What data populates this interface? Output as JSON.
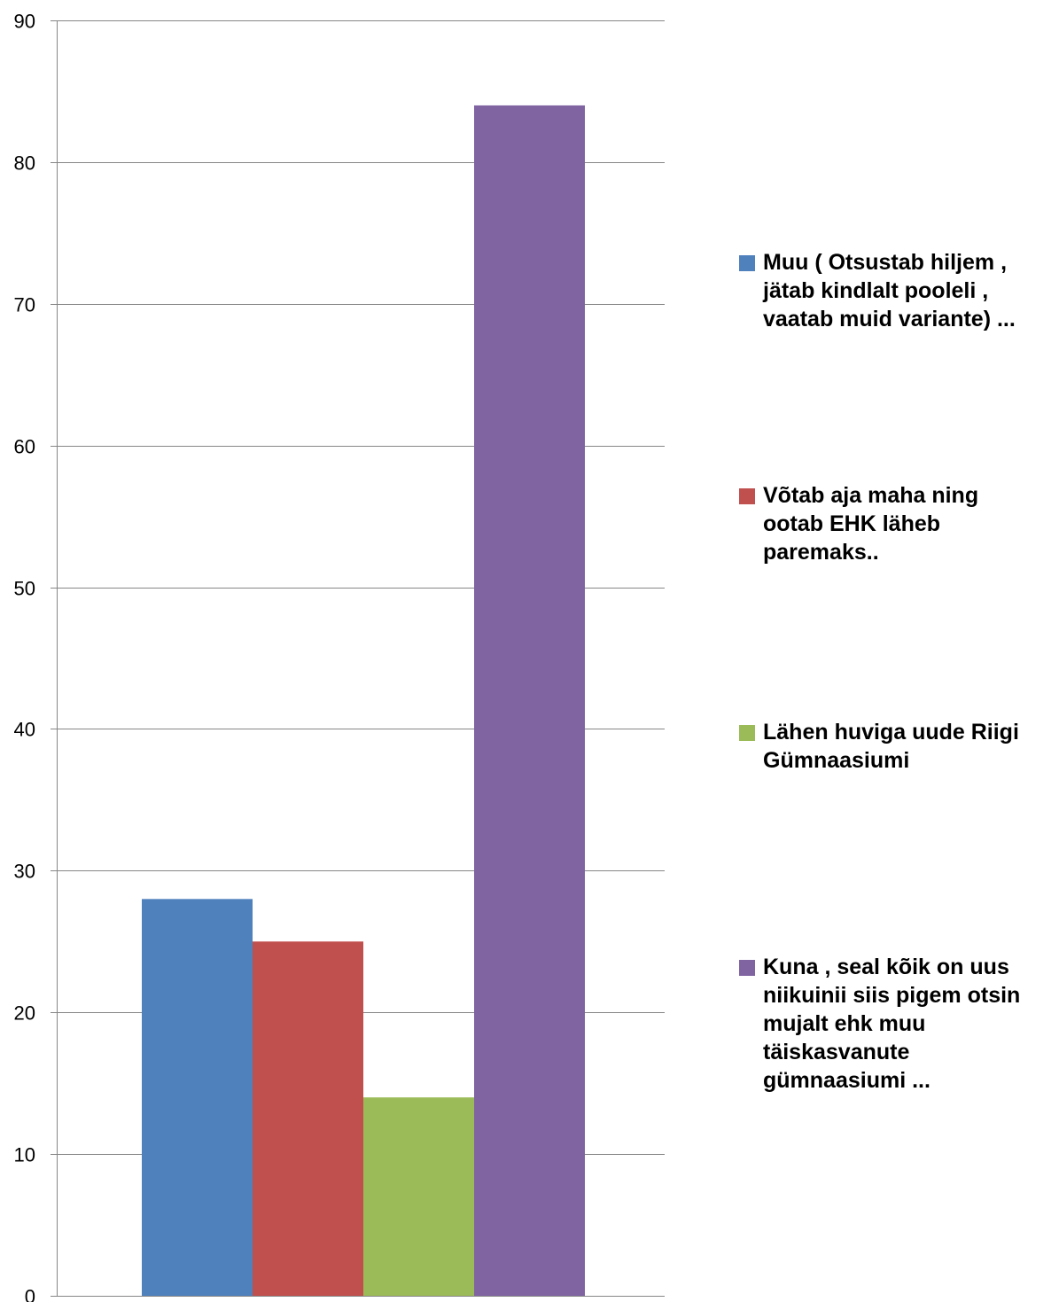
{
  "chart_data": {
    "type": "bar",
    "title": "",
    "xlabel": "",
    "ylabel": "",
    "ylim": [
      0,
      90
    ],
    "yticks": [
      0,
      10,
      20,
      30,
      40,
      50,
      60,
      70,
      80,
      90
    ],
    "grid": true,
    "legend_position": "right",
    "series": [
      {
        "name": "Muu ( Otsustab hiljem ,\njätab kindlalt pooleli ,\nvaatab muid variante) ...",
        "value": 28,
        "color": "#4F81BD"
      },
      {
        "name": "Võtab aja maha ning\nootab EHK läheb\nparemaks..",
        "value": 25,
        "color": "#C0504D"
      },
      {
        "name": "Lähen huviga uude Riigi\nGümnaasiumi",
        "value": 14,
        "color": "#9BBB59"
      },
      {
        "name": "Kuna , seal kõik on uus\nniikuinii siis pigem otsin\nmujalt ehk muu\ntäiskasvanute\ngümnaasiumi ...",
        "value": 84,
        "color": "#8064A2"
      }
    ]
  }
}
